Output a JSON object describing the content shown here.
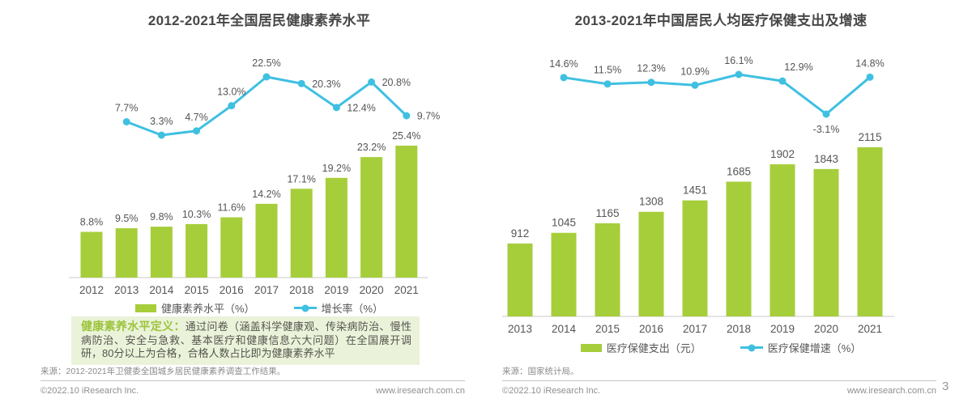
{
  "page": {
    "number": "3"
  },
  "chart_data": [
    {
      "type": "bar+line",
      "title": "2012-2021年全国居民健康素养水平",
      "legend_position": "bottom",
      "categories": [
        "2012",
        "2013",
        "2014",
        "2015",
        "2016",
        "2017",
        "2018",
        "2019",
        "2020",
        "2021"
      ],
      "series": [
        {
          "type": "bar",
          "name": "健康素养水平（%）",
          "values": [
            8.8,
            9.5,
            9.8,
            10.3,
            11.6,
            14.2,
            17.1,
            19.2,
            23.2,
            25.4
          ],
          "labels": [
            "8.8%",
            "9.5%",
            "9.8%",
            "10.3%",
            "11.6%",
            "14.2%",
            "17.1%",
            "19.2%",
            "23.2%",
            "25.4%"
          ]
        },
        {
          "type": "line",
          "name": "增长率（%）",
          "start_index": 1,
          "values": [
            7.7,
            3.3,
            4.7,
            13.0,
            22.5,
            20.3,
            12.4,
            20.8,
            9.7
          ],
          "labels": [
            "7.7%",
            "3.3%",
            "4.7%",
            "13.0%",
            "22.5%",
            "20.3%",
            "12.4%",
            "20.8%",
            "9.7%"
          ],
          "label_pos": [
            "above",
            "above",
            "above",
            "above",
            "above",
            "right",
            "right",
            "right",
            "right"
          ]
        }
      ],
      "bar_color": "#a6ce3a",
      "line_color": "#3fc0e1",
      "definition": {
        "title": "健康素养水平定义：",
        "body": "通过问卷（涵盖科学健康观、传染病防治、慢性病防治、安全与急救、基本医疗和健康信息六大问题）在全国展开调研，80分以上为合格，合格人数占比即为健康素养水平"
      },
      "source": "来源：2012-2021年卫健委全国城乡居民健康素养调查工作结果。",
      "footer_left": "©2022.10 iResearch Inc.",
      "footer_right": "www.iresearch.com.cn"
    },
    {
      "type": "bar+line",
      "title": "2013-2021年中国居民人均医疗保健支出及增速",
      "legend_position": "bottom",
      "categories": [
        "2013",
        "2014",
        "2015",
        "2016",
        "2017",
        "2018",
        "2019",
        "2020",
        "2021"
      ],
      "series": [
        {
          "type": "bar",
          "name": "医疗保健支出（元）",
          "values": [
            912,
            1045,
            1165,
            1308,
            1451,
            1685,
            1902,
            1843,
            2115
          ],
          "labels": [
            "912",
            "1045",
            "1165",
            "1308",
            "1451",
            "1685",
            "1902",
            "1843",
            "2115"
          ]
        },
        {
          "type": "line",
          "name": "医疗保健增速（%）",
          "start_index": 1,
          "values": [
            14.6,
            11.5,
            12.3,
            10.9,
            16.1,
            12.9,
            -3.1,
            14.8
          ],
          "labels": [
            "14.6%",
            "11.5%",
            "12.3%",
            "10.9%",
            "16.1%",
            "12.9%",
            "-3.1%",
            "14.8%"
          ],
          "label_pos": [
            "above",
            "above",
            "above",
            "above",
            "above",
            "above-right",
            "below",
            "above"
          ]
        }
      ],
      "bar_color": "#a6ce3a",
      "line_color": "#3fc0e1",
      "source": "来源：国家统计局。",
      "footer_left": "©2022.10 iResearch Inc.",
      "footer_right": "www.iresearch.com.cn"
    }
  ]
}
